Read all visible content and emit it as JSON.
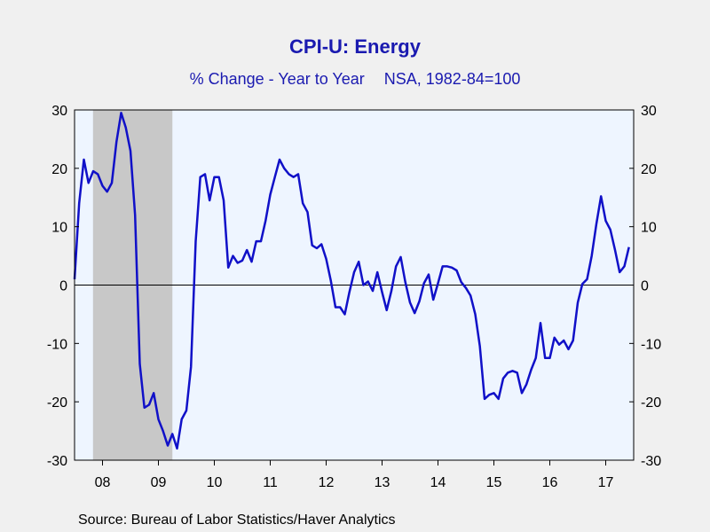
{
  "chart_data": {
    "type": "line",
    "title": "CPI-U: Energy",
    "subtitle_left": "% Change - Year to Year",
    "subtitle_right": "NSA, 1982-84=100",
    "source": "Source:  Bureau of Labor Statistics/Haver Analytics",
    "ylim": [
      -30,
      30
    ],
    "yticks": [
      -30,
      -20,
      -10,
      0,
      10,
      20,
      30
    ],
    "xlim": [
      2007.5,
      2017.5
    ],
    "xtick_labels": [
      "08",
      "09",
      "10",
      "11",
      "12",
      "13",
      "14",
      "15",
      "16",
      "17"
    ],
    "x_start": 2007.5,
    "x_step": 0.0833333,
    "recession": [
      2007.83,
      2009.25
    ],
    "colors": {
      "line": "#1010c8",
      "plot_bg": "#eef5ff",
      "recession": "#c8c8c8",
      "title": "#1a1ab0"
    },
    "series": [
      {
        "values": [
          1.0,
          14.0,
          21.5,
          17.5,
          19.5,
          19.0,
          17.0,
          16.0,
          17.5,
          24.5,
          29.5,
          27.0,
          23.0,
          12.0,
          -13.5,
          -21.0,
          -20.5,
          -18.5,
          -23.0,
          -25.0,
          -27.5,
          -25.5,
          -28.0,
          -23.0,
          -21.5,
          -14.0,
          7.5,
          18.5,
          19.0,
          14.5,
          18.5,
          18.5,
          14.5,
          3.0,
          5.0,
          3.8,
          4.2,
          6.0,
          4.0,
          7.5,
          7.5,
          11.0,
          15.5,
          18.5,
          21.5,
          20.0,
          19.0,
          18.5,
          19.0,
          14.0,
          12.5,
          6.8,
          6.3,
          7.0,
          4.5,
          0.8,
          -3.8,
          -3.8,
          -5.0,
          -1.2,
          2.2,
          4.0,
          0.0,
          0.6,
          -1.0,
          2.2,
          -1.2,
          -4.3,
          -1.0,
          3.2,
          4.8,
          0.5,
          -3.0,
          -4.8,
          -2.8,
          0.3,
          1.8,
          -2.5,
          0.3,
          3.2,
          3.2,
          3.0,
          2.5,
          0.5,
          -0.5,
          -1.8,
          -5.0,
          -10.5,
          -19.5,
          -18.8,
          -18.5,
          -19.5,
          -16.0,
          -15.0,
          -14.7,
          -15.0,
          -18.5,
          -17.0,
          -14.5,
          -12.5,
          -6.5,
          -12.5,
          -12.5,
          -9.0,
          -10.2,
          -9.5,
          -11.0,
          -9.5,
          -3.0,
          0.2,
          1.0,
          5.0,
          10.5,
          15.2,
          11.0,
          9.5,
          6.0,
          2.2,
          3.2,
          6.5
        ]
      }
    ]
  }
}
